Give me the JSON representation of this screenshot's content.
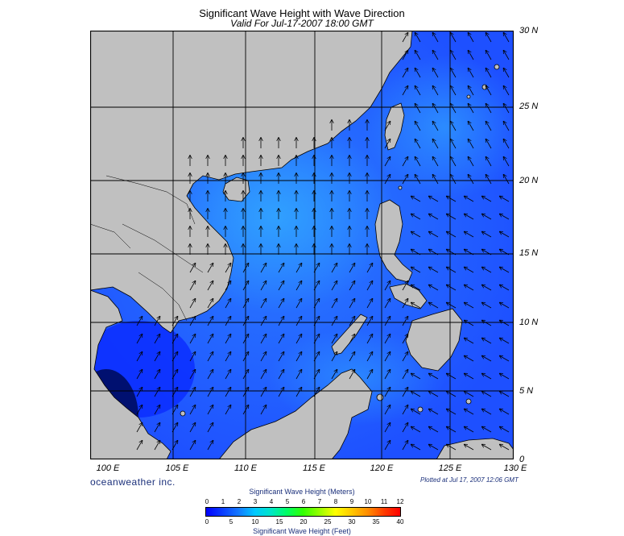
{
  "header": {
    "title": "Significant Wave Height with Wave Direction",
    "subtitle": "Valid For Jul-17-2007 18:00 GMT"
  },
  "axes": {
    "lat_labels": [
      "30 N",
      "25 N",
      "20 N",
      "15 N",
      "10 N",
      "5 N",
      "0"
    ],
    "lon_labels": [
      "100 E",
      "105 E",
      "110 E",
      "115 E",
      "120 E",
      "125 E",
      "130 E"
    ]
  },
  "footer": {
    "brand": "oceanweather inc.",
    "plotted": "Plotted at Jul 17, 2007 12:06 GMT"
  },
  "colorbar": {
    "top_title": "Significant Wave Height (Meters)",
    "bottom_title": "Significant Wave Height (Feet)",
    "meter_ticks": [
      "0",
      "1",
      "2",
      "3",
      "4",
      "5",
      "6",
      "7",
      "8",
      "9",
      "10",
      "11",
      "12"
    ],
    "feet_ticks": [
      "0",
      "5",
      "10",
      "15",
      "20",
      "25",
      "30",
      "35",
      "40"
    ],
    "colors": [
      "#0000ff",
      "#0a3cff",
      "#1478ff",
      "#00c8ff",
      "#00e6c8",
      "#00ff64",
      "#32ff00",
      "#96ff00",
      "#ffff00",
      "#ffc800",
      "#ff8c00",
      "#ff3c00",
      "#ff0000"
    ]
  },
  "map": {
    "land_color": "#c0c0c0",
    "sea_color_base": "#1e50ff",
    "grid_color": "#000000",
    "arrow_color": "#000000"
  }
}
